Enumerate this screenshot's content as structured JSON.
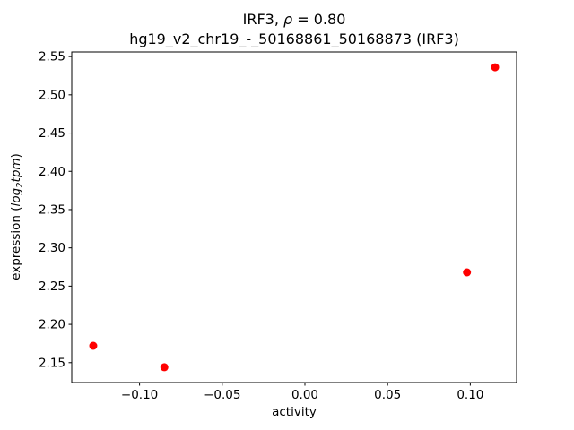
{
  "figure": {
    "title_line1": {
      "pre": "IRF3, ",
      "rho": "ρ",
      "post": " = 0.80"
    },
    "title_line2": "hg19_v2_chr19_-_50168861_50168873 (IRF3)",
    "xlabel": "activity",
    "ylabel": {
      "pre": "expression (",
      "italic1": "log",
      "sub": "2",
      "italic2": "tpm",
      "post": ")"
    }
  },
  "chart_data": {
    "type": "scatter",
    "title": "IRF3, ρ = 0.80\nhg19_v2_chr19_-_50168861_50168873 (IRF3)",
    "xlabel": "activity",
    "ylabel": "expression (log2 tpm)",
    "marker_color": "#ff0000",
    "marker_style": "circle",
    "grid": false,
    "legend": null,
    "xlim": [
      -0.141,
      0.128
    ],
    "ylim": [
      2.124,
      2.556
    ],
    "x_ticks": [
      -0.1,
      -0.05,
      0.0,
      0.05,
      0.1
    ],
    "x_tick_labels": [
      "−0.10",
      "−0.05",
      "0.00",
      "0.05",
      "0.10"
    ],
    "y_ticks": [
      2.15,
      2.2,
      2.25,
      2.3,
      2.35,
      2.4,
      2.45,
      2.5,
      2.55
    ],
    "y_tick_labels": [
      "2.15",
      "2.20",
      "2.25",
      "2.30",
      "2.35",
      "2.40",
      "2.45",
      "2.50",
      "2.55"
    ],
    "points": [
      {
        "x": -0.128,
        "y": 2.172
      },
      {
        "x": -0.085,
        "y": 2.144
      },
      {
        "x": 0.098,
        "y": 2.268
      },
      {
        "x": 0.115,
        "y": 2.536
      }
    ]
  }
}
